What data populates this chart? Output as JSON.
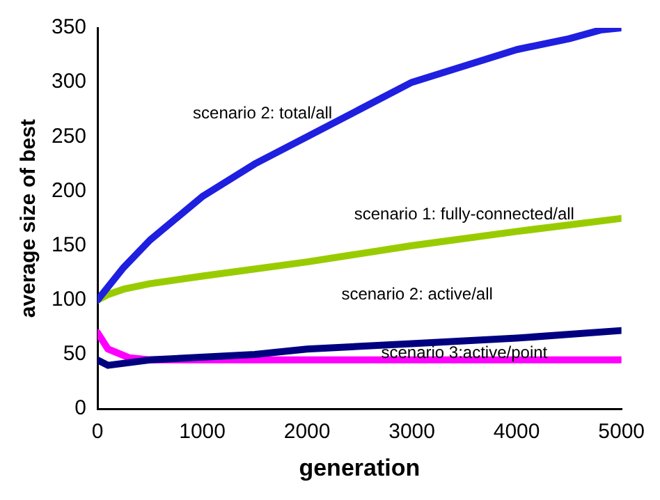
{
  "chart_data": {
    "type": "line",
    "xlabel": "generation",
    "ylabel": "average size of best",
    "xlim": [
      0,
      5000
    ],
    "xticks": [
      0,
      1000,
      2000,
      3000,
      4000,
      5000
    ],
    "ylim": [
      0,
      350
    ],
    "yticks": [
      0,
      50,
      100,
      150,
      200,
      250,
      300,
      350
    ],
    "grid": false,
    "legend": false,
    "marker": "none",
    "line_style": "solid",
    "series": [
      {
        "color": "#1f1fe0",
        "x": [
          0,
          250,
          500,
          1000,
          1500,
          2000,
          2500,
          3000,
          3500,
          4000,
          4500,
          4800,
          5000
        ],
        "values": [
          100,
          130,
          155,
          195,
          225,
          250,
          275,
          300,
          315,
          330,
          340,
          348,
          350
        ]
      },
      {
        "color": "#99cc00",
        "x": [
          0,
          100,
          250,
          500,
          1000,
          2000,
          3000,
          4000,
          5000
        ],
        "values": [
          100,
          105,
          110,
          115,
          122,
          135,
          150,
          163,
          175
        ]
      },
      {
        "color": "#000080",
        "x": [
          0,
          100,
          500,
          1500,
          2000,
          3000,
          4000,
          5000
        ],
        "values": [
          45,
          40,
          45,
          50,
          55,
          60,
          65,
          72
        ]
      },
      {
        "color": "#ff00ff",
        "x": [
          0,
          100,
          300,
          500,
          1000,
          5000
        ],
        "values": [
          70,
          55,
          47,
          45,
          45,
          45
        ]
      }
    ],
    "annotations": [
      "scenario 2: total/all",
      "scenario 1: fully-connected/all",
      "scenario 2: active/all",
      "scenario 3:active/point"
    ]
  }
}
